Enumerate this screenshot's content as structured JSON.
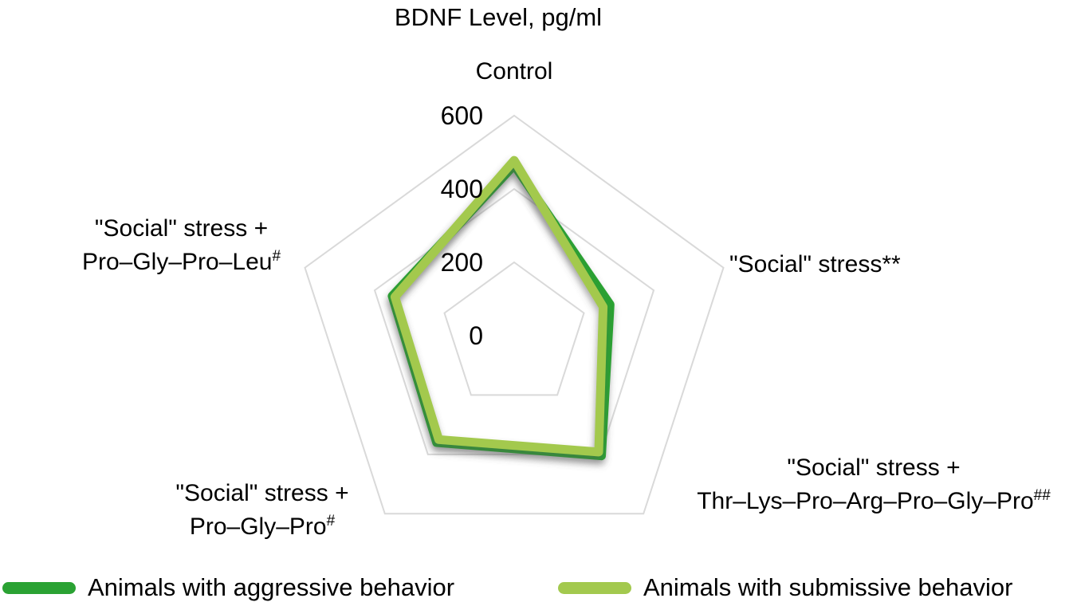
{
  "chart_data": {
    "type": "radar",
    "title": "BDNF Level, pg/ml",
    "ticks": [
      "600",
      "400",
      "200",
      "0"
    ],
    "rlim": [
      0,
      600
    ],
    "grid_values": [
      200,
      400,
      600
    ],
    "grid_color": "#d9d9d9",
    "legend_position": "bottom",
    "axes": [
      {
        "id": "control",
        "lines": [
          "Control"
        ],
        "line2": "",
        "sup": ""
      },
      {
        "id": "social-stress",
        "lines": [
          "\"Social\" stress**"
        ],
        "line2": "",
        "sup": ""
      },
      {
        "id": "social-stress-thr-lys-pro-arg-pro-gly-pro",
        "lines": [
          "\"Social\" stress +"
        ],
        "line2": "Thr–Lys–Pro–Arg–Pro–Gly–Pro",
        "sup": "##"
      },
      {
        "id": "social-stress-pro-gly-pro",
        "lines": [
          "\"Social\" stress +"
        ],
        "line2": "Pro–Gly–Pro",
        "sup": "#"
      },
      {
        "id": "social-stress-pro-gly-pro-leu",
        "lines": [
          "\"Social\" stress +"
        ],
        "line2": "Pro–Gly–Pro–Leu",
        "sup": "#"
      }
    ],
    "series": [
      {
        "name": "Animals with aggressive behavior",
        "color": "#2aa233",
        "values": [
          465,
          275,
          405,
          360,
          350
        ]
      },
      {
        "name": "Animals with submissive behavior",
        "color": "#a3c94e",
        "values": [
          478,
          255,
          392,
          350,
          342
        ]
      }
    ]
  }
}
